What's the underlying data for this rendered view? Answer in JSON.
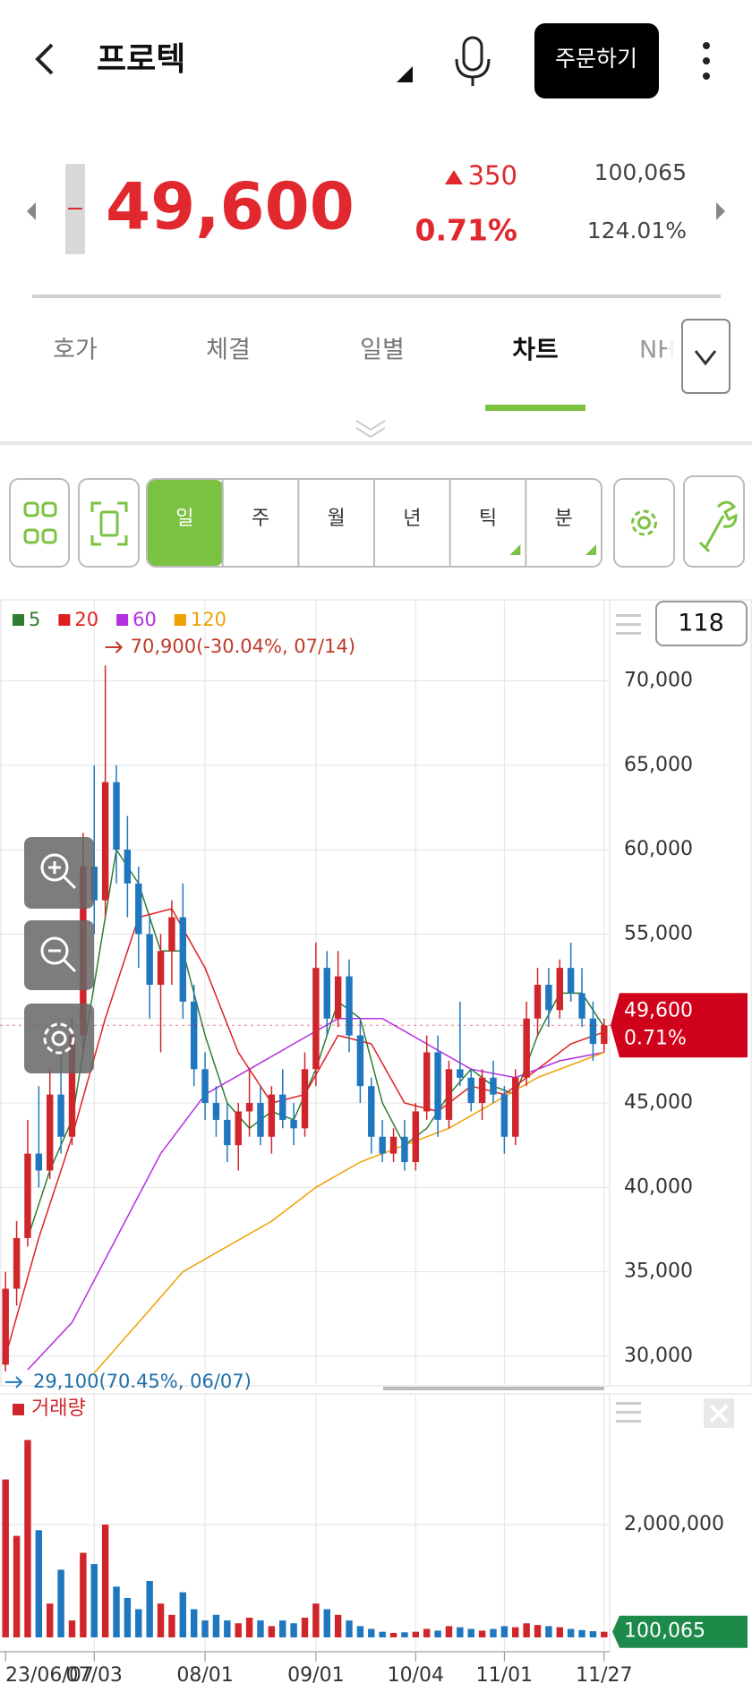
{
  "header": {
    "title": "프로텍",
    "order_button": "주문하기"
  },
  "quote": {
    "price": "49,600",
    "change": "350",
    "change_rate": "0.71%",
    "volume": "100,065",
    "ratio": "124.01%"
  },
  "tabs": [
    "호가",
    "체결",
    "일별",
    "차트",
    "NH"
  ],
  "periods": [
    "일",
    "주",
    "월",
    "년",
    "틱",
    "분"
  ],
  "candle_count": "118",
  "chart_data": {
    "type": "candlestick",
    "up_color": "#d0252a",
    "down_color": "#1f77c0",
    "grid": true,
    "categories": [
      "23/06/07",
      null,
      null,
      null,
      null,
      null,
      null,
      null,
      "07/03",
      null,
      null,
      null,
      null,
      null,
      null,
      null,
      null,
      null,
      "08/01",
      null,
      null,
      null,
      null,
      null,
      null,
      null,
      null,
      null,
      "09/01",
      null,
      null,
      null,
      null,
      null,
      null,
      null,
      null,
      "10/04",
      null,
      null,
      null,
      null,
      null,
      null,
      null,
      "11/01",
      null,
      null,
      null,
      null,
      null,
      null,
      null,
      null,
      "11/27"
    ],
    "ohlc": [
      [
        29500,
        35000,
        29100,
        34000
      ],
      [
        34000,
        38000,
        33000,
        37000
      ],
      [
        37000,
        44000,
        36500,
        42000
      ],
      [
        42000,
        46000,
        40000,
        41000
      ],
      [
        41000,
        47000,
        40500,
        45500
      ],
      [
        45500,
        48000,
        42000,
        43000
      ],
      [
        43000,
        50000,
        42500,
        49000
      ],
      [
        49000,
        61000,
        48000,
        59000
      ],
      [
        59000,
        65000,
        55000,
        57000
      ],
      [
        57000,
        70900,
        56000,
        64000
      ],
      [
        64000,
        65000,
        58000,
        60000
      ],
      [
        60000,
        62000,
        56000,
        58000
      ],
      [
        58000,
        59000,
        53000,
        55000
      ],
      [
        55000,
        56000,
        50000,
        52000
      ],
      [
        52000,
        55000,
        48000,
        54000
      ],
      [
        54000,
        57000,
        52000,
        56000
      ],
      [
        56000,
        58000,
        50000,
        51000
      ],
      [
        51000,
        52000,
        46000,
        47000
      ],
      [
        47000,
        48000,
        44000,
        45000
      ],
      [
        45000,
        46000,
        43000,
        44000
      ],
      [
        44000,
        45000,
        41500,
        42500
      ],
      [
        42500,
        45000,
        41000,
        44500
      ],
      [
        44500,
        47000,
        43000,
        45000
      ],
      [
        45000,
        46000,
        42500,
        43000
      ],
      [
        43000,
        46000,
        42000,
        45500
      ],
      [
        45500,
        47000,
        43500,
        44000
      ],
      [
        44000,
        45000,
        42500,
        43500
      ],
      [
        43500,
        48000,
        43000,
        47000
      ],
      [
        47000,
        54500,
        46000,
        53000
      ],
      [
        53000,
        54000,
        49000,
        50000
      ],
      [
        50000,
        54000,
        49500,
        52500
      ],
      [
        52500,
        53500,
        48000,
        49000
      ],
      [
        49000,
        50000,
        45000,
        46000
      ],
      [
        46000,
        46500,
        42000,
        43000
      ],
      [
        43000,
        44000,
        41500,
        42000
      ],
      [
        42000,
        43500,
        41500,
        43000
      ],
      [
        43000,
        44000,
        41000,
        41500
      ],
      [
        41500,
        45000,
        41000,
        44500
      ],
      [
        44500,
        49000,
        44000,
        48000
      ],
      [
        48000,
        49000,
        43000,
        44000
      ],
      [
        44000,
        47500,
        43500,
        47000
      ],
      [
        47000,
        51000,
        46000,
        46500
      ],
      [
        46500,
        47000,
        44500,
        45000
      ],
      [
        45000,
        47000,
        44000,
        46500
      ],
      [
        46500,
        47500,
        45000,
        45500
      ],
      [
        45500,
        46000,
        42000,
        43000
      ],
      [
        43000,
        47000,
        42500,
        46500
      ],
      [
        46500,
        51000,
        46000,
        50000
      ],
      [
        50000,
        53000,
        49000,
        52000
      ],
      [
        52000,
        53000,
        49500,
        50500
      ],
      [
        50500,
        53500,
        50000,
        53000
      ],
      [
        53000,
        54500,
        51000,
        51500
      ],
      [
        51500,
        53000,
        49500,
        50000
      ],
      [
        50000,
        51000,
        47500,
        48500
      ],
      [
        48500,
        50000,
        48000,
        49600
      ]
    ],
    "moving_averages": [
      {
        "name": "5",
        "color": "#2e7d32",
        "x": [
          2,
          4,
          6,
          8,
          10,
          12,
          14,
          16,
          18,
          20,
          22,
          24,
          26,
          28,
          30,
          32,
          34,
          36,
          38,
          40,
          42,
          44,
          46,
          48,
          50,
          52,
          54
        ],
        "values": [
          37000,
          41000,
          44000,
          52000,
          60000,
          58000,
          54000,
          54000,
          49000,
          45000,
          43500,
          44500,
          44000,
          47000,
          51000,
          50000,
          45000,
          42500,
          43500,
          45500,
          47000,
          46000,
          45500,
          49000,
          51500,
          51500,
          49500
        ]
      },
      {
        "name": "20",
        "color": "#e02020",
        "x": [
          0,
          3,
          6,
          9,
          12,
          15,
          18,
          21,
          24,
          27,
          30,
          33,
          36,
          39,
          42,
          45,
          48,
          51,
          54
        ],
        "values": [
          30000,
          37000,
          43000,
          50000,
          56000,
          56500,
          53000,
          48000,
          45000,
          45500,
          49000,
          48500,
          45000,
          44500,
          46000,
          45500,
          47000,
          48500,
          49200
        ]
      },
      {
        "name": "60",
        "color": "#b42ee0",
        "x": [
          2,
          6,
          10,
          14,
          18,
          22,
          26,
          30,
          34,
          38,
          42,
          46,
          50,
          54
        ],
        "values": [
          29200,
          32000,
          37000,
          42000,
          45500,
          47000,
          48500,
          50000,
          50000,
          48500,
          47000,
          46500,
          47500,
          48000
        ]
      },
      {
        "name": "120",
        "color": "#f0a000",
        "x": [
          8,
          12,
          16,
          20,
          24,
          28,
          32,
          36,
          40,
          44,
          48,
          52,
          54
        ],
        "values": [
          29000,
          32000,
          35000,
          36500,
          38000,
          40000,
          41500,
          42500,
          43500,
          45000,
          46500,
          47500,
          48000
        ]
      }
    ],
    "ylim": [
      28300,
      74800
    ],
    "yticks": [
      {
        "value": 30000,
        "label": "30,000"
      },
      {
        "value": 35000,
        "label": "35,000"
      },
      {
        "value": 40000,
        "label": "40,000"
      },
      {
        "value": 45000,
        "label": "45,000"
      },
      {
        "value": 50000,
        "label": "50,000"
      },
      {
        "value": 55000,
        "label": "55,000"
      },
      {
        "value": 60000,
        "label": "60,000"
      },
      {
        "value": 65000,
        "label": "65,000"
      },
      {
        "value": 70000,
        "label": "70,000"
      }
    ],
    "high_note": {
      "value": 70900,
      "label": "70,900(-30.04%, 07/14)"
    },
    "low_note": {
      "value": 29100,
      "label": "29,100(70.45%, 06/07)"
    },
    "last_price": {
      "value": 49600,
      "label": "49,600"
    },
    "last_change": "0.71%",
    "volume": {
      "name": "거래량",
      "values": [
        2800000,
        1800000,
        3500000,
        1900000,
        600000,
        1200000,
        300000,
        1500000,
        1300000,
        2000000,
        900000,
        700000,
        500000,
        1000000,
        600000,
        400000,
        800000,
        500000,
        300000,
        400000,
        300000,
        250000,
        350000,
        300000,
        200000,
        300000,
        250000,
        350000,
        600000,
        500000,
        400000,
        300000,
        200000,
        150000,
        100000,
        80000,
        90000,
        100000,
        150000,
        120000,
        200000,
        180000,
        150000,
        120000,
        150000,
        200000,
        180000,
        250000,
        220000,
        200000,
        180000,
        150000,
        130000,
        110000,
        100065
      ],
      "ylim": [
        0,
        4000000
      ],
      "yticks": [
        {
          "value": 2000000,
          "label": "2,000,000"
        }
      ],
      "current": {
        "value": 100065,
        "label": "100,065"
      }
    }
  }
}
